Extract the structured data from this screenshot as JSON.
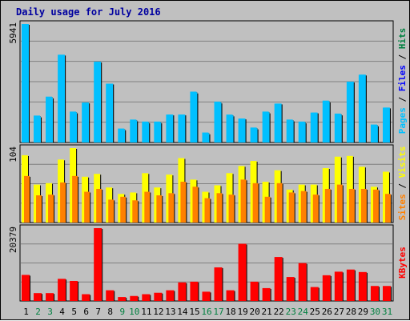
{
  "title": "Daily usage for July 2016",
  "colors": {
    "title": "#0000a0",
    "frame_bg": "#c0c0c0",
    "panel_bg": "#c0c0c0",
    "grid": "#808080",
    "pages": "#00c0ff",
    "hits": "#00c0ff",
    "files": "#0000ff",
    "visits": "#ffff00",
    "sites": "#ff8000",
    "kbytes": "#ff0000",
    "weekday_label": "#000000",
    "weekend_label": "#008040"
  },
  "chart_data": [
    {
      "type": "bar",
      "name": "hits-files-pages",
      "ylim": [
        0,
        5941
      ],
      "max_label": "5941",
      "axis_title": [
        {
          "text": "Hits",
          "color": "#008040"
        },
        {
          "text": "Files",
          "color": "#0000ff"
        },
        {
          "text": "Pages",
          "color": "#00c0ff"
        }
      ],
      "series": [
        {
          "name": "Hits",
          "values": [
            5941,
            1350,
            2300,
            4400,
            1550,
            2000,
            4050,
            2950,
            700,
            1150,
            1050,
            1050,
            1400,
            1400,
            2550,
            500,
            2050,
            1400,
            1200,
            750,
            1550,
            1950,
            1150,
            1050,
            1500,
            2100,
            1450,
            3050,
            3400,
            900,
            1750
          ]
        },
        {
          "name": "Files",
          "values": [
            5941,
            1300,
            2250,
            4400,
            1500,
            2000,
            4050,
            2950,
            650,
            1100,
            1000,
            1000,
            1400,
            1400,
            2500,
            450,
            2000,
            1350,
            1200,
            700,
            1500,
            1950,
            1100,
            1000,
            1500,
            2050,
            1400,
            3050,
            3400,
            850,
            1750
          ]
        }
      ]
    },
    {
      "type": "bar",
      "name": "visits-sites",
      "ylim": [
        0,
        104
      ],
      "max_label": "104",
      "axis_title": [
        {
          "text": "Visits",
          "color": "#ffff00"
        },
        {
          "text": "Sites",
          "color": "#ff8000"
        }
      ],
      "series": [
        {
          "name": "Visits",
          "values": [
            94,
            53,
            55,
            88,
            104,
            64,
            68,
            49,
            40,
            42,
            69,
            49,
            67,
            90,
            60,
            43,
            52,
            69,
            79,
            86,
            57,
            73,
            46,
            53,
            53,
            76,
            92,
            93,
            78,
            50,
            71
          ]
        },
        {
          "name": "Sites",
          "values": [
            65,
            38,
            39,
            56,
            65,
            43,
            47,
            32,
            36,
            31,
            43,
            38,
            41,
            57,
            50,
            34,
            41,
            39,
            60,
            55,
            36,
            55,
            42,
            44,
            39,
            47,
            53,
            47,
            47,
            46,
            40
          ]
        }
      ]
    },
    {
      "type": "bar",
      "name": "kbytes",
      "ylim": [
        0,
        20379
      ],
      "max_label": "20379",
      "axis_title": [
        {
          "text": "KBytes",
          "color": "#ff0000"
        }
      ],
      "series": [
        {
          "name": "KBytes",
          "values": [
            7300,
            2200,
            2200,
            6200,
            5600,
            1900,
            20379,
            3000,
            1100,
            1400,
            1900,
            2300,
            3000,
            5200,
            5400,
            2600,
            9400,
            3000,
            16000,
            5400,
            3600,
            12300,
            6700,
            10600,
            3900,
            7200,
            8200,
            8800,
            8100,
            4200,
            4200
          ]
        }
      ]
    }
  ],
  "days": [
    {
      "label": "1",
      "weekend": false
    },
    {
      "label": "2",
      "weekend": true
    },
    {
      "label": "3",
      "weekend": true
    },
    {
      "label": "4",
      "weekend": false
    },
    {
      "label": "5",
      "weekend": false
    },
    {
      "label": "6",
      "weekend": false
    },
    {
      "label": "7",
      "weekend": false
    },
    {
      "label": "8",
      "weekend": false
    },
    {
      "label": "9",
      "weekend": true
    },
    {
      "label": "10",
      "weekend": true
    },
    {
      "label": "11",
      "weekend": false
    },
    {
      "label": "12",
      "weekend": false
    },
    {
      "label": "13",
      "weekend": false
    },
    {
      "label": "14",
      "weekend": false
    },
    {
      "label": "15",
      "weekend": false
    },
    {
      "label": "16",
      "weekend": true
    },
    {
      "label": "17",
      "weekend": true
    },
    {
      "label": "18",
      "weekend": false
    },
    {
      "label": "19",
      "weekend": false
    },
    {
      "label": "20",
      "weekend": false
    },
    {
      "label": "21",
      "weekend": false
    },
    {
      "label": "22",
      "weekend": false
    },
    {
      "label": "23",
      "weekend": true
    },
    {
      "label": "24",
      "weekend": true
    },
    {
      "label": "25",
      "weekend": false
    },
    {
      "label": "26",
      "weekend": false
    },
    {
      "label": "27",
      "weekend": false
    },
    {
      "label": "28",
      "weekend": false
    },
    {
      "label": "29",
      "weekend": false
    },
    {
      "label": "30",
      "weekend": true
    },
    {
      "label": "31",
      "weekend": true
    }
  ]
}
